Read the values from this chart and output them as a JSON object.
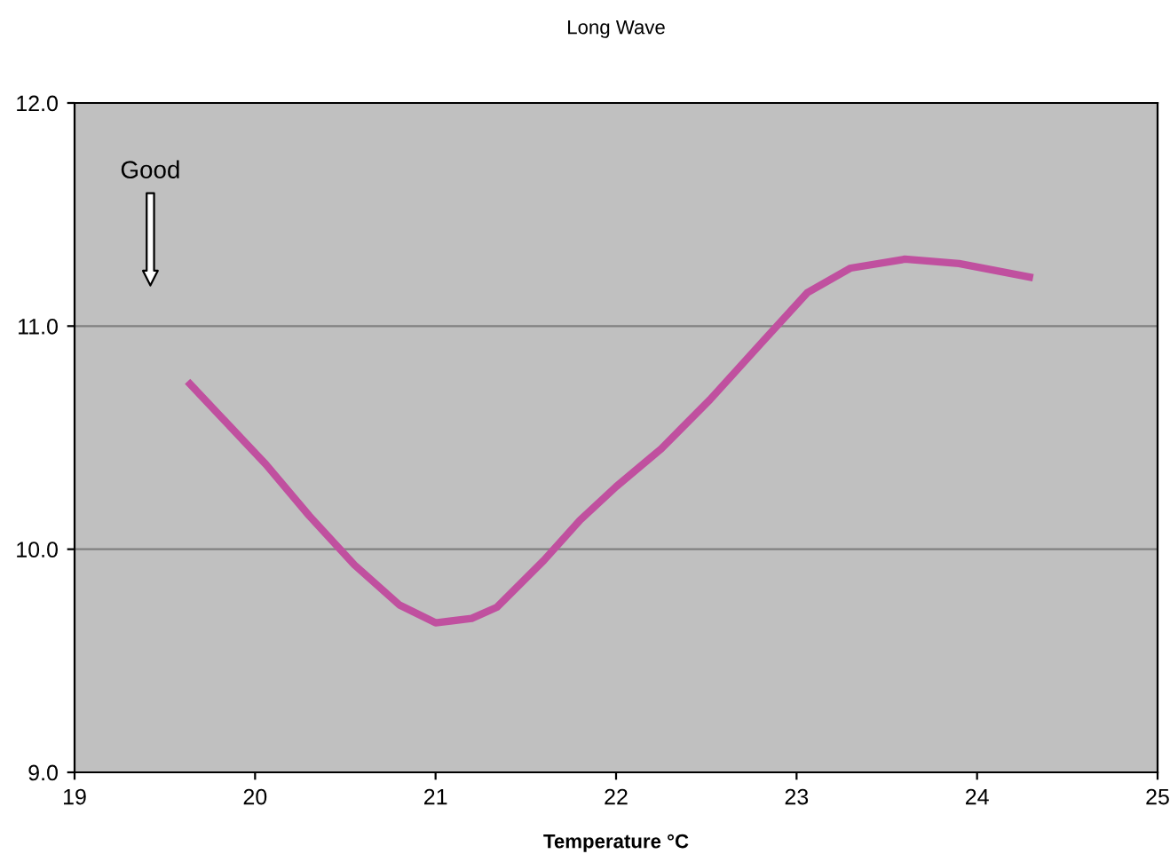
{
  "chart_data": {
    "type": "line",
    "title": "Long Wave",
    "xlabel": "Temperature °C",
    "x": [
      19.64,
      19.85,
      20.06,
      20.3,
      20.55,
      20.8,
      21.0,
      21.2,
      21.34,
      21.6,
      21.8,
      22.0,
      22.25,
      22.52,
      22.8,
      23.06,
      23.3,
      23.6,
      23.9,
      24.29
    ],
    "series": [
      {
        "color": "#c0509f",
        "values": [
          10.74,
          10.56,
          10.38,
          10.15,
          9.93,
          9.75,
          9.67,
          9.69,
          9.74,
          9.95,
          10.13,
          10.28,
          10.45,
          10.67,
          10.92,
          11.15,
          11.26,
          11.3,
          11.28,
          11.22
        ]
      }
    ],
    "xlim": [
      19,
      25
    ],
    "xticks": [
      19,
      20,
      21,
      22,
      23,
      24,
      25
    ],
    "ylim": [
      9,
      12
    ],
    "yticks": [
      {
        "value": 9,
        "label": "9.0"
      },
      {
        "value": 10,
        "label": "10.0"
      },
      {
        "value": 11,
        "label": "11.0"
      },
      {
        "value": 12,
        "label": "12.0"
      }
    ],
    "grid": "y",
    "marker": "none",
    "line_style": "solid",
    "annotations": [
      "Good"
    ]
  }
}
